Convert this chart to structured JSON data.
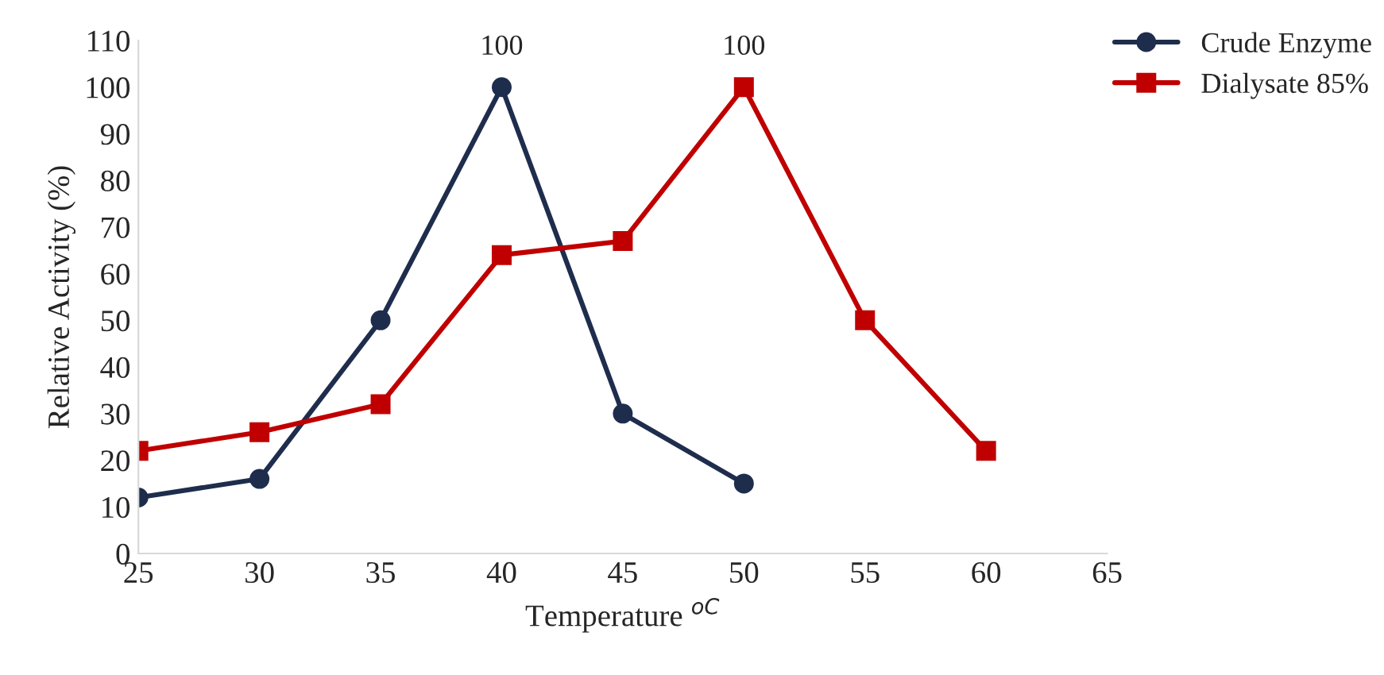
{
  "chart_data": {
    "type": "line",
    "xlabel": "Temperature $^{oC}$",
    "ylabel": "Relative Activity (%)",
    "x": [
      25,
      30,
      35,
      40,
      45,
      50,
      55,
      60
    ],
    "series": [
      {
        "name": "Crude Enzyme",
        "color": "#1f2d4d",
        "marker": "circle",
        "values": [
          12,
          16,
          50,
          100,
          30,
          15,
          null,
          null
        ],
        "value_labels": [
          null,
          null,
          null,
          "100",
          null,
          null,
          null,
          null
        ]
      },
      {
        "name": "Dialysate 85%",
        "color": "#c00000",
        "marker": "square",
        "values": [
          22,
          26,
          32,
          64,
          67,
          100,
          50,
          22
        ],
        "value_labels": [
          null,
          null,
          null,
          null,
          null,
          "100",
          null,
          null
        ]
      }
    ],
    "xlim": [
      25,
      65
    ],
    "xticks": [
      25,
      30,
      35,
      40,
      45,
      50,
      55,
      60,
      65
    ],
    "ylim": [
      0,
      110
    ],
    "yticks": [
      0,
      10,
      20,
      30,
      40,
      50,
      60,
      70,
      80,
      90,
      100,
      110
    ],
    "grid": false,
    "legend": "top right",
    "line_style": "solid"
  }
}
